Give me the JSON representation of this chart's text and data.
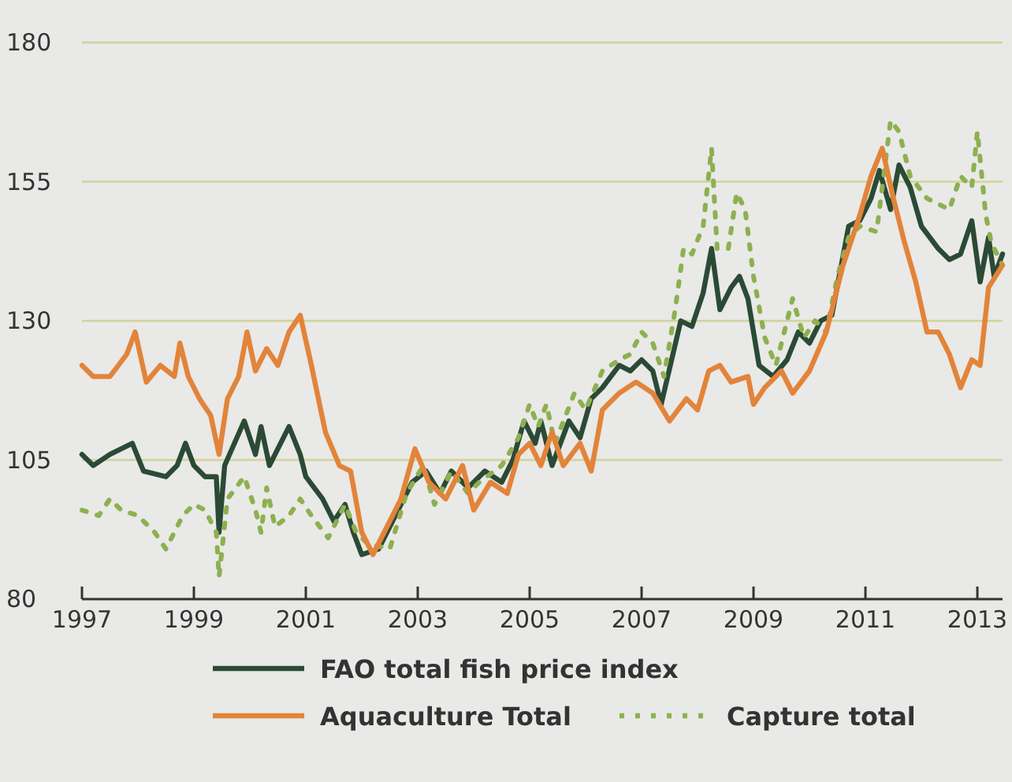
{
  "chart_data": {
    "type": "line",
    "xlim": [
      1997,
      2013.45
    ],
    "xticks": [
      1997,
      1999,
      2001,
      2003,
      2005,
      2007,
      2009,
      2011,
      2013
    ],
    "ylim": [
      80,
      180
    ],
    "yticks": [
      80,
      105,
      130,
      155,
      180
    ],
    "grid": "y",
    "legend": "bottom",
    "series": [
      {
        "name": "FAO total fish price index",
        "color": "#2b4a36",
        "line_style": "solid",
        "x": [
          1997,
          1997.2,
          1997.5,
          1997.9,
          1998.1,
          1998.5,
          1998.7,
          1998.85,
          1999,
          1999.2,
          1999.4,
          1999.45,
          1999.55,
          1999.9,
          2000.1,
          2000.2,
          2000.35,
          2000.7,
          2000.9,
          2001,
          2001.3,
          2001.5,
          2001.7,
          2001.85,
          2002,
          2002.3,
          2002.6,
          2002.9,
          2003.15,
          2003.4,
          2003.6,
          2003.9,
          2004.2,
          2004.5,
          2004.7,
          2004.9,
          2005.1,
          2005.2,
          2005.4,
          2005.7,
          2005.9,
          2006.1,
          2006.3,
          2006.6,
          2006.8,
          2007,
          2007.2,
          2007.35,
          2007.7,
          2007.9,
          2008.1,
          2008.25,
          2008.4,
          2008.6,
          2008.75,
          2008.9,
          2009.1,
          2009.35,
          2009.6,
          2009.8,
          2010,
          2010.2,
          2010.4,
          2010.7,
          2010.9,
          2011.1,
          2011.25,
          2011.45,
          2011.6,
          2011.8,
          2012,
          2012.3,
          2012.5,
          2012.7,
          2012.9,
          2013.05,
          2013.2,
          2013.3,
          2013.45
        ],
        "values": [
          106,
          104,
          106,
          108,
          103,
          102,
          104,
          108,
          104,
          102,
          102,
          92,
          104,
          112,
          106,
          111,
          104,
          111,
          106,
          102,
          98,
          94,
          97,
          92,
          88,
          89,
          95,
          101,
          103,
          99,
          103,
          100,
          103,
          101,
          105,
          112,
          108,
          112,
          104,
          112,
          109,
          116,
          118,
          122,
          121,
          123,
          121,
          115,
          130,
          129,
          135,
          143,
          132,
          136,
          138,
          134,
          122,
          120,
          123,
          128,
          126,
          130,
          131,
          147,
          148,
          152,
          157,
          150,
          158,
          154,
          147,
          143,
          141,
          142,
          148,
          137,
          145,
          138,
          142
        ]
      },
      {
        "name": "Aquaculture Total",
        "color": "#e2843a",
        "line_style": "solid",
        "x": [
          1997,
          1997.2,
          1997.5,
          1997.8,
          1997.95,
          1998.15,
          1998.4,
          1998.65,
          1998.75,
          1998.9,
          1999.1,
          1999.3,
          1999.45,
          1999.6,
          1999.8,
          1999.95,
          2000.1,
          2000.3,
          2000.5,
          2000.7,
          2000.9,
          2001.1,
          2001.35,
          2001.6,
          2001.8,
          2002,
          2002.2,
          2002.4,
          2002.7,
          2002.95,
          2003.2,
          2003.5,
          2003.8,
          2004,
          2004.3,
          2004.6,
          2004.8,
          2005,
          2005.2,
          2005.4,
          2005.6,
          2005.9,
          2006.1,
          2006.3,
          2006.6,
          2006.9,
          2007.2,
          2007.5,
          2007.8,
          2008,
          2008.2,
          2008.4,
          2008.6,
          2008.9,
          2009,
          2009.2,
          2009.5,
          2009.7,
          2010,
          2010.3,
          2010.6,
          2010.9,
          2011.1,
          2011.3,
          2011.5,
          2011.7,
          2011.9,
          2012.1,
          2012.3,
          2012.5,
          2012.7,
          2012.9,
          2013.05,
          2013.2,
          2013.45
        ],
        "values": [
          122,
          120,
          120,
          124,
          128,
          119,
          122,
          120,
          126,
          120,
          116,
          113,
          106,
          116,
          120,
          128,
          121,
          125,
          122,
          128,
          131,
          122,
          110,
          104,
          103,
          92,
          88,
          92,
          98,
          107,
          101,
          98,
          104,
          96,
          101,
          99,
          106,
          108,
          104,
          110,
          104,
          108,
          103,
          114,
          117,
          119,
          117,
          112,
          116,
          114,
          121,
          122,
          119,
          120,
          115,
          118,
          121,
          117,
          121,
          128,
          140,
          149,
          156,
          161,
          152,
          144,
          137,
          128,
          128,
          124,
          118,
          123,
          122,
          136,
          140
        ]
      },
      {
        "name": "Capture total",
        "color": "#8db050",
        "line_style": "dashed",
        "x": [
          1997,
          1997.3,
          1997.5,
          1997.7,
          1998,
          1998.3,
          1998.5,
          1998.8,
          1999,
          1999.2,
          1999.4,
          1999.45,
          1999.6,
          1999.9,
          2000.1,
          2000.2,
          2000.3,
          2000.45,
          2000.7,
          2000.9,
          2001.1,
          2001.4,
          2001.7,
          2001.9,
          2002.1,
          2002.5,
          2002.8,
          2003.1,
          2003.3,
          2003.6,
          2003.9,
          2004.1,
          2004.5,
          2004.8,
          2005,
          2005.15,
          2005.3,
          2005.45,
          2005.8,
          2006,
          2006.3,
          2006.6,
          2006.8,
          2007,
          2007.2,
          2007.4,
          2007.6,
          2007.75,
          2007.9,
          2008.1,
          2008.25,
          2008.35,
          2008.55,
          2008.7,
          2008.85,
          2009,
          2009.2,
          2009.4,
          2009.7,
          2009.9,
          2010.1,
          2010.3,
          2010.5,
          2010.7,
          2010.9,
          2011.2,
          2011.45,
          2011.6,
          2011.8,
          2012.1,
          2012.5,
          2012.7,
          2012.9,
          2013,
          2013.15,
          2013.25,
          2013.45
        ],
        "values": [
          96,
          95,
          98,
          96,
          95,
          92,
          89,
          95,
          97,
          96,
          92,
          84,
          98,
          102,
          96,
          92,
          100,
          93,
          95,
          98,
          95,
          91,
          97,
          92,
          90,
          89,
          99,
          104,
          97,
          103,
          99,
          101,
          104,
          109,
          115,
          111,
          115,
          108,
          117,
          114,
          121,
          123,
          124,
          128,
          126,
          120,
          132,
          143,
          142,
          147,
          161,
          143,
          143,
          153,
          150,
          138,
          127,
          122,
          134,
          127,
          130,
          128,
          138,
          145,
          147,
          146,
          166,
          164,
          156,
          152,
          150,
          156,
          154,
          164,
          149,
          144,
          140
        ]
      }
    ]
  }
}
